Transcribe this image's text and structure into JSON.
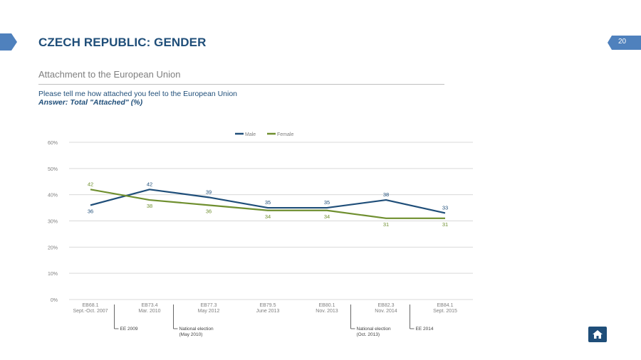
{
  "header": {
    "title": "CZECH REPUBLIC: GENDER",
    "page_number": "20"
  },
  "section": {
    "subtitle": "Attachment to the European Union",
    "question": "Please tell me how attached you feel to the European Union",
    "answer": "Answer: Total \"Attached\" (%)"
  },
  "colors": {
    "brand": "#1f4e79",
    "male": "#1f4e79",
    "female": "#6f8f2f",
    "grid": "#d9d9d9",
    "muted": "#7f7f7f"
  },
  "icons": {
    "home": "home-icon",
    "left_tab": "tab-arrow-icon",
    "page_badge": "page-badge-icon"
  },
  "chart_data": {
    "type": "line",
    "categories": [
      [
        "EB68.1",
        "Sept.-Oct. 2007"
      ],
      [
        "EB73.4",
        "Mar. 2010"
      ],
      [
        "EB77.3",
        "May 2012"
      ],
      [
        "EB79.5",
        "June 2013"
      ],
      [
        "EB80.1",
        "Nov. 2013"
      ],
      [
        "EB82.3",
        "Nov. 2014"
      ],
      [
        "EB84.1",
        "Sept. 2015"
      ]
    ],
    "series": [
      {
        "name": "Male",
        "values": [
          36,
          42,
          39,
          35,
          35,
          38,
          33
        ]
      },
      {
        "name": "Female",
        "values": [
          42,
          38,
          36,
          34,
          34,
          31,
          31
        ]
      }
    ],
    "ylim": [
      0,
      60
    ],
    "yticks": [
      "0%",
      "10%",
      "20%",
      "30%",
      "40%",
      "50%",
      "60%"
    ],
    "legend_position": "top",
    "grid": true,
    "annotations": [
      {
        "text": [
          "EE 2009"
        ],
        "between": [
          0,
          1
        ]
      },
      {
        "text": [
          "National election",
          "(May 2010)"
        ],
        "between": [
          1,
          2
        ]
      },
      {
        "text": [
          "National election",
          "(Oct. 2013)"
        ],
        "between": [
          4,
          5
        ]
      },
      {
        "text": [
          "EE 2014"
        ],
        "between": [
          5,
          6
        ]
      }
    ]
  }
}
